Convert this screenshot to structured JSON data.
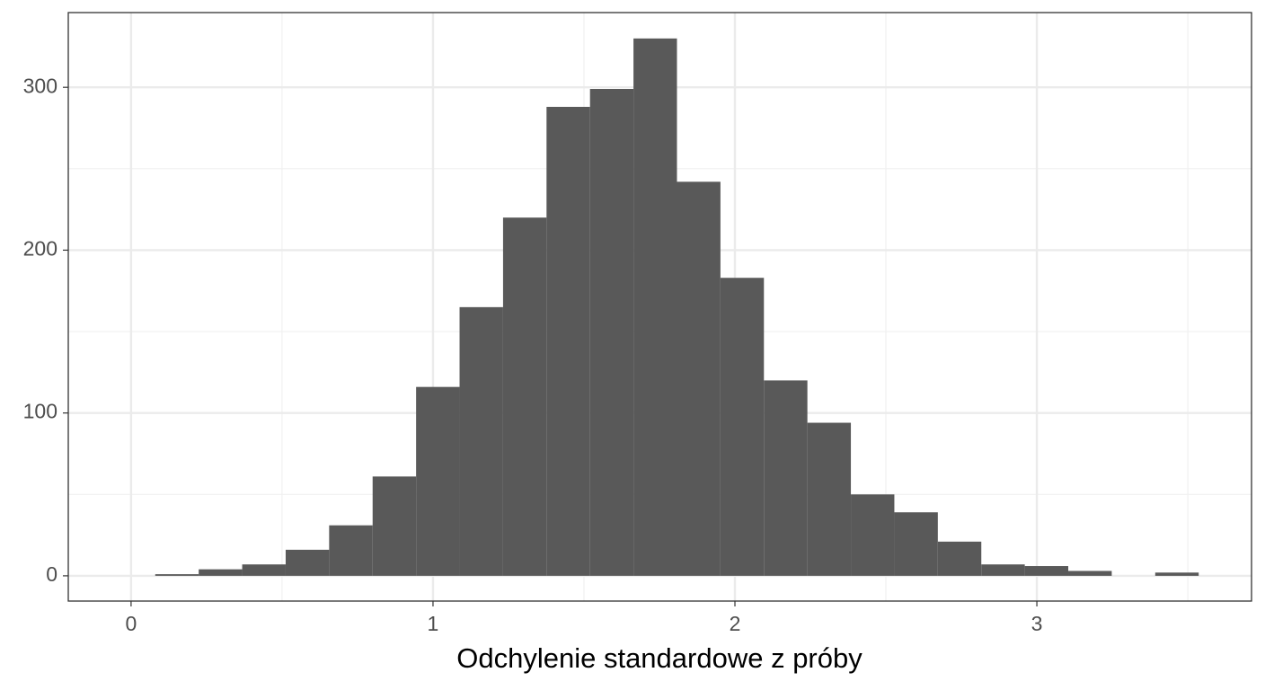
{
  "chart_data": {
    "type": "histogram",
    "x_label": "Odchylenie standardowe z próby",
    "bins": [
      0.08,
      0.224,
      0.368,
      0.512,
      0.656,
      0.8,
      0.944,
      1.088,
      1.232,
      1.376,
      1.52,
      1.664,
      1.808,
      1.952,
      2.096,
      2.24,
      2.384,
      2.528,
      2.672,
      2.816,
      2.96,
      3.104,
      3.248,
      3.392,
      3.536
    ],
    "counts": [
      1,
      4,
      7,
      16,
      31,
      61,
      116,
      165,
      220,
      288,
      299,
      330,
      242,
      183,
      120,
      94,
      50,
      39,
      21,
      7,
      6,
      3,
      0,
      2
    ],
    "color": "#595959",
    "xlim": [
      -0.208,
      3.711
    ],
    "ylim": [
      -15.5,
      345.9
    ],
    "xticks": [
      0,
      1,
      2,
      3
    ],
    "yticks": [
      0,
      100,
      200,
      300
    ],
    "x_minor_grid": [
      0.5,
      1.5,
      2.5,
      3.5
    ],
    "y_minor_grid": [
      50,
      150,
      250
    ],
    "grid": true
  }
}
